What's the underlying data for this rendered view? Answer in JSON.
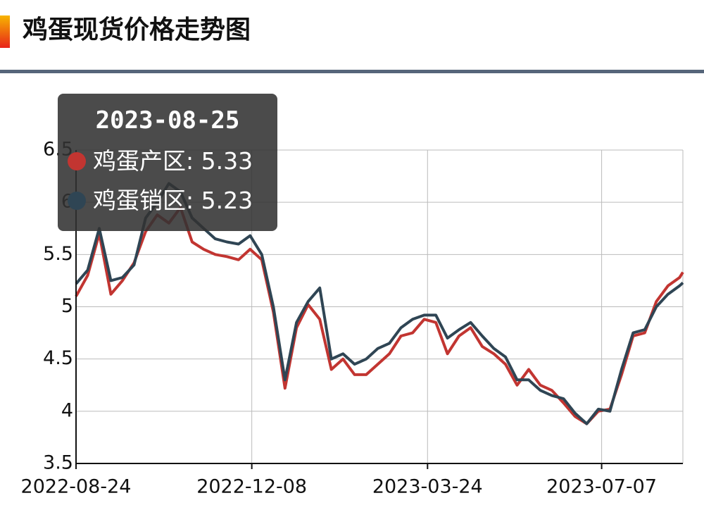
{
  "chart_data": {
    "type": "line",
    "title": "鸡蛋现货价格走势图",
    "x": [
      "2022-08-24",
      "2022-08-31",
      "2022-09-07",
      "2022-09-14",
      "2022-09-21",
      "2022-09-28",
      "2022-10-05",
      "2022-10-12",
      "2022-10-19",
      "2022-10-26",
      "2022-11-02",
      "2022-11-09",
      "2022-11-16",
      "2022-11-23",
      "2022-11-30",
      "2022-12-07",
      "2022-12-14",
      "2022-12-21",
      "2022-12-28",
      "2023-01-04",
      "2023-01-11",
      "2023-01-18",
      "2023-01-25",
      "2023-02-01",
      "2023-02-08",
      "2023-02-15",
      "2023-02-22",
      "2023-03-01",
      "2023-03-08",
      "2023-03-15",
      "2023-03-22",
      "2023-03-29",
      "2023-04-05",
      "2023-04-12",
      "2023-04-19",
      "2023-04-26",
      "2023-05-03",
      "2023-05-10",
      "2023-05-17",
      "2023-05-24",
      "2023-05-31",
      "2023-06-07",
      "2023-06-14",
      "2023-06-21",
      "2023-06-28",
      "2023-07-05",
      "2023-07-12",
      "2023-07-19",
      "2023-07-26",
      "2023-08-02",
      "2023-08-09",
      "2023-08-16",
      "2023-08-23",
      "2023-08-25"
    ],
    "series": [
      {
        "name": "鸡蛋产区",
        "color": "#c23531",
        "values": [
          5.1,
          5.3,
          5.7,
          5.12,
          5.25,
          5.42,
          5.72,
          5.88,
          5.8,
          5.95,
          5.62,
          5.55,
          5.5,
          5.48,
          5.45,
          5.55,
          5.45,
          4.95,
          4.22,
          4.8,
          5.02,
          4.88,
          4.4,
          4.5,
          4.35,
          4.35,
          4.45,
          4.55,
          4.72,
          4.75,
          4.88,
          4.85,
          4.55,
          4.72,
          4.8,
          4.62,
          4.55,
          4.45,
          4.25,
          4.4,
          4.25,
          4.2,
          4.08,
          3.95,
          3.88,
          4.0,
          4.02,
          4.35,
          4.72,
          4.75,
          5.05,
          5.2,
          5.28,
          5.33
        ]
      },
      {
        "name": "鸡蛋销区",
        "color": "#2f4554",
        "values": [
          5.22,
          5.35,
          5.75,
          5.25,
          5.28,
          5.4,
          5.85,
          6.0,
          6.18,
          6.1,
          5.85,
          5.75,
          5.65,
          5.62,
          5.6,
          5.68,
          5.5,
          5.0,
          4.3,
          4.85,
          5.05,
          5.18,
          4.5,
          4.55,
          4.45,
          4.5,
          4.6,
          4.65,
          4.8,
          4.88,
          4.92,
          4.92,
          4.7,
          4.78,
          4.85,
          4.72,
          4.6,
          4.52,
          4.3,
          4.3,
          4.2,
          4.15,
          4.12,
          3.98,
          3.88,
          4.02,
          4.0,
          4.4,
          4.75,
          4.78,
          5.0,
          5.12,
          5.2,
          5.23
        ]
      }
    ],
    "xlim": [
      "2022-08-24",
      "2023-08-25"
    ],
    "xticks": [
      "2022-08-24",
      "2022-12-08",
      "2023-03-24",
      "2023-07-07"
    ],
    "ylim": [
      3.5,
      6.5
    ],
    "yticks": [
      3.5,
      4,
      4.5,
      5,
      5.5,
      6,
      6.5
    ],
    "grid": true
  }
}
